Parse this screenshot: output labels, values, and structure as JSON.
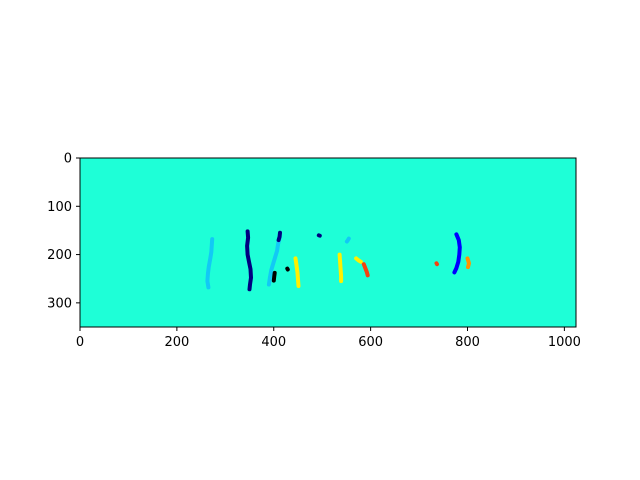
{
  "chart_data": {
    "type": "heatmap",
    "xlim": [
      0,
      1024
    ],
    "ylim": [
      350,
      0
    ],
    "x_ticks": [
      0,
      200,
      400,
      600,
      800,
      1000
    ],
    "y_ticks": [
      0,
      100,
      200,
      300
    ],
    "x_tick_labels": [
      "0",
      "200",
      "400",
      "600",
      "800",
      "1000"
    ],
    "y_tick_labels": [
      "0",
      "100",
      "200",
      "300"
    ],
    "grid": false,
    "colormap": "jet",
    "background_color": "#1effd7",
    "regions": [
      {
        "color": "#12c9f5",
        "points": [
          [
            265,
            268
          ],
          [
            263,
            255
          ],
          [
            264,
            240
          ],
          [
            266,
            225
          ],
          [
            269,
            208
          ],
          [
            271,
            195
          ],
          [
            272,
            180
          ],
          [
            273,
            168
          ]
        ]
      },
      {
        "color": "#000080",
        "points": [
          [
            346,
            152
          ],
          [
            347,
            165
          ],
          [
            345,
            182
          ],
          [
            346,
            200
          ],
          [
            349,
            215
          ],
          [
            352,
            230
          ],
          [
            353,
            248
          ],
          [
            351,
            262
          ],
          [
            350,
            272
          ]
        ]
      },
      {
        "color": "#12c9f5",
        "points": [
          [
            390,
            262
          ],
          [
            392,
            248
          ],
          [
            395,
            232
          ],
          [
            399,
            218
          ],
          [
            403,
            205
          ],
          [
            407,
            192
          ],
          [
            409,
            178
          ],
          [
            412,
            165
          ]
        ]
      },
      {
        "color": "#000080",
        "points": [
          [
            413,
            155
          ],
          [
            412,
            163
          ],
          [
            410,
            170
          ]
        ]
      },
      {
        "color": "#000000",
        "points": [
          [
            402,
            238
          ],
          [
            401,
            246
          ],
          [
            400,
            254
          ]
        ]
      },
      {
        "color": "#fff000",
        "points": [
          [
            445,
            208
          ],
          [
            447,
            222
          ],
          [
            449,
            238
          ],
          [
            450,
            252
          ],
          [
            451,
            265
          ]
        ]
      },
      {
        "color": "#fff000",
        "points": [
          [
            536,
            200
          ],
          [
            537,
            215
          ],
          [
            538,
            230
          ],
          [
            539,
            245
          ],
          [
            539,
            255
          ]
        ]
      },
      {
        "color": "#12c9f5",
        "points": [
          [
            555,
            167
          ],
          [
            553,
            170
          ],
          [
            551,
            173
          ]
        ]
      },
      {
        "color": "#fff000",
        "points": [
          [
            570,
            208
          ],
          [
            575,
            212
          ],
          [
            580,
            215
          ]
        ]
      },
      {
        "color": "#f5420e",
        "points": [
          [
            586,
            220
          ],
          [
            589,
            228
          ],
          [
            592,
            236
          ],
          [
            594,
            243
          ]
        ]
      },
      {
        "color": "#0000ff",
        "points": [
          [
            777,
            158
          ],
          [
            782,
            170
          ],
          [
            784,
            185
          ],
          [
            783,
            200
          ],
          [
            781,
            215
          ],
          [
            777,
            228
          ],
          [
            773,
            237
          ]
        ]
      },
      {
        "color": "#ff9400",
        "points": [
          [
            800,
            208
          ],
          [
            803,
            218
          ],
          [
            801,
            226
          ]
        ]
      },
      {
        "color": "#f5420e",
        "points": [
          [
            736,
            218
          ],
          [
            737,
            220
          ]
        ]
      },
      {
        "color": "#000080",
        "points": [
          [
            493,
            160
          ],
          [
            495,
            161
          ]
        ]
      },
      {
        "color": "#000000",
        "points": [
          [
            428,
            229
          ],
          [
            429,
            231
          ]
        ]
      }
    ]
  }
}
